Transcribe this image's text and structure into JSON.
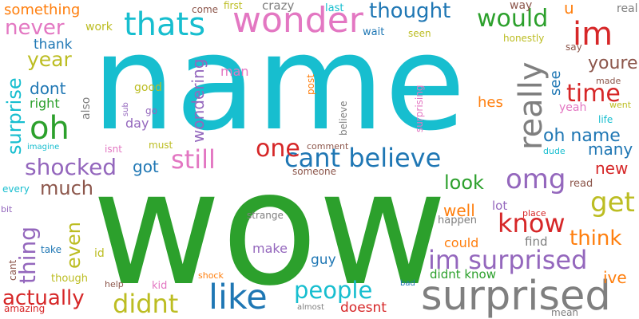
{
  "words": [
    {
      "text": "wow",
      "color": "#2ca02c"
    },
    {
      "text": "name",
      "color": "#17becf"
    },
    {
      "text": "surprised",
      "color": "#7f7f7f"
    },
    {
      "text": "thats",
      "color": "#17becf"
    },
    {
      "text": "wonder",
      "color": "#e377c2"
    },
    {
      "text": "im surprised",
      "color": "#9467bd"
    },
    {
      "text": "like",
      "color": "#1f77b4"
    },
    {
      "text": "people",
      "color": "#17becf"
    },
    {
      "text": "didnt",
      "color": "#bcbd22"
    },
    {
      "text": "cant believe",
      "color": "#1f77b4"
    },
    {
      "text": "oh",
      "color": "#2ca02c"
    },
    {
      "text": "im",
      "color": "#d62728"
    },
    {
      "text": "would",
      "color": "#2ca02c"
    },
    {
      "text": "really",
      "color": "#7f7f7f"
    },
    {
      "text": "still",
      "color": "#e377c2"
    },
    {
      "text": "one",
      "color": "#d62728"
    },
    {
      "text": "get",
      "color": "#bcbd22"
    },
    {
      "text": "know",
      "color": "#d62728"
    },
    {
      "text": "omg",
      "color": "#9467bd"
    },
    {
      "text": "shocked",
      "color": "#9467bd"
    },
    {
      "text": "think",
      "color": "#ff7f0e"
    },
    {
      "text": "thing",
      "color": "#9467bd"
    },
    {
      "text": "time",
      "color": "#d62728"
    },
    {
      "text": "actually",
      "color": "#d62728"
    },
    {
      "text": "surprise",
      "color": "#17becf"
    },
    {
      "text": "never",
      "color": "#e377c2"
    },
    {
      "text": "year",
      "color": "#bcbd22"
    },
    {
      "text": "thought",
      "color": "#1f77b4"
    },
    {
      "text": "youre",
      "color": "#8c564b"
    },
    {
      "text": "oh name",
      "color": "#1f77b4"
    },
    {
      "text": "much",
      "color": "#8c564b"
    },
    {
      "text": "even",
      "color": "#bcbd22"
    },
    {
      "text": "look",
      "color": "#2ca02c"
    },
    {
      "text": "something",
      "color": "#ff7f0e"
    },
    {
      "text": "dont",
      "color": "#1f77b4"
    },
    {
      "text": "wondering",
      "color": "#9467bd"
    },
    {
      "text": "many",
      "color": "#1f77b4"
    },
    {
      "text": "new",
      "color": "#d62728"
    },
    {
      "text": "got",
      "color": "#1f77b4"
    },
    {
      "text": "well",
      "color": "#ff7f0e"
    },
    {
      "text": "ive",
      "color": "#ff7f0e"
    },
    {
      "text": "see",
      "color": "#1f77b4"
    },
    {
      "text": "hes",
      "color": "#ff7f0e"
    },
    {
      "text": "u",
      "color": "#ff7f0e"
    },
    {
      "text": "thank",
      "color": "#1f77b4"
    },
    {
      "text": "right",
      "color": "#2ca02c"
    },
    {
      "text": "day",
      "color": "#9467bd"
    },
    {
      "text": "doesnt",
      "color": "#d62728"
    },
    {
      "text": "could",
      "color": "#ff7f0e"
    },
    {
      "text": "lot",
      "color": "#9467bd"
    },
    {
      "text": "find",
      "color": "#7f7f7f"
    },
    {
      "text": "didnt know",
      "color": "#2ca02c"
    },
    {
      "text": "guy",
      "color": "#1f77b4"
    },
    {
      "text": "make",
      "color": "#9467bd"
    },
    {
      "text": "amazing",
      "color": "#d62728"
    },
    {
      "text": "crazy",
      "color": "#7f7f7f"
    },
    {
      "text": "work",
      "color": "#bcbd22"
    },
    {
      "text": "way",
      "color": "#8c564b"
    },
    {
      "text": "real",
      "color": "#7f7f7f"
    },
    {
      "text": "last",
      "color": "#17becf"
    },
    {
      "text": "first",
      "color": "#bcbd22"
    },
    {
      "text": "come",
      "color": "#8c564b"
    },
    {
      "text": "wait",
      "color": "#1f77b4"
    },
    {
      "text": "seen",
      "color": "#bcbd22"
    },
    {
      "text": "honestly",
      "color": "#bcbd22"
    },
    {
      "text": "say",
      "color": "#8c564b"
    },
    {
      "text": "made",
      "color": "#8c564b"
    },
    {
      "text": "yeah",
      "color": "#e377c2"
    },
    {
      "text": "life",
      "color": "#17becf"
    },
    {
      "text": "went",
      "color": "#bcbd22"
    },
    {
      "text": "dude",
      "color": "#17becf"
    },
    {
      "text": "read",
      "color": "#8c564b"
    },
    {
      "text": "place",
      "color": "#d62728"
    },
    {
      "text": "happen",
      "color": "#7f7f7f"
    },
    {
      "text": "strange",
      "color": "#7f7f7f"
    },
    {
      "text": "someone",
      "color": "#8c564b"
    },
    {
      "text": "comment",
      "color": "#8c564b"
    },
    {
      "text": "must",
      "color": "#bcbd22"
    },
    {
      "text": "isnt",
      "color": "#e377c2"
    },
    {
      "text": "imagine",
      "color": "#17becf"
    },
    {
      "text": "every",
      "color": "#17becf"
    },
    {
      "text": "bit",
      "color": "#9467bd"
    },
    {
      "text": "take",
      "color": "#1f77b4"
    },
    {
      "text": "id",
      "color": "#bcbd22"
    },
    {
      "text": "though",
      "color": "#bcbd22"
    },
    {
      "text": "cant",
      "color": "#8c564b"
    },
    {
      "text": "help",
      "color": "#8c564b"
    },
    {
      "text": "kid",
      "color": "#e377c2"
    },
    {
      "text": "shock",
      "color": "#ff7f0e"
    },
    {
      "text": "almost",
      "color": "#7f7f7f"
    },
    {
      "text": "bad",
      "color": "#1f77b4"
    },
    {
      "text": "mean",
      "color": "#7f7f7f"
    },
    {
      "text": "man",
      "color": "#e377c2"
    },
    {
      "text": "good",
      "color": "#bcbd22"
    },
    {
      "text": "go",
      "color": "#9467bd"
    },
    {
      "text": "also",
      "color": "#7f7f7f"
    },
    {
      "text": "sub",
      "color": "#9467bd"
    },
    {
      "text": "post",
      "color": "#ff7f0e"
    },
    {
      "text": "believe",
      "color": "#7f7f7f"
    },
    {
      "text": "surprising",
      "color": "#e377c2"
    }
  ]
}
